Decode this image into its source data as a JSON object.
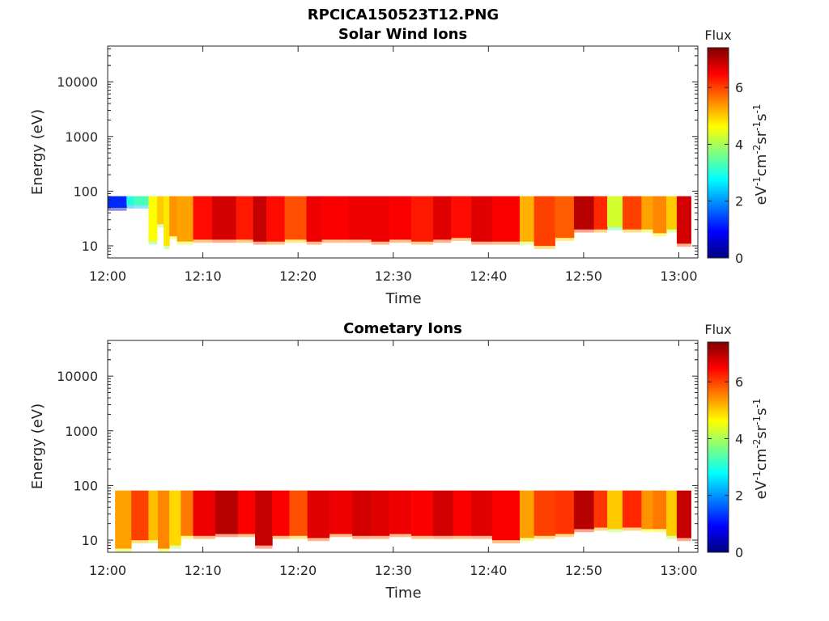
{
  "figure_title": "RPCICA150523T12.PNG",
  "colors": {
    "axis": "#262626"
  },
  "colorbar": {
    "title": "Flux",
    "unit_parts": [
      "eV",
      "-1",
      "cm",
      "-2",
      "sr",
      "-1",
      "s",
      "-1"
    ],
    "range": [
      0,
      7.4
    ],
    "ticks": [
      0,
      2,
      4,
      6
    ],
    "tick_labels": [
      "0",
      "2",
      "4",
      "6"
    ],
    "colormap": "jet"
  },
  "chart_data": [
    {
      "type": "heatmap",
      "title": "Solar Wind Ions",
      "xlabel": "Time",
      "ylabel": "Energy (eV)",
      "x_ticks": [
        "12:00",
        "12:10",
        "12:20",
        "12:30",
        "12:40",
        "12:50",
        "13:00"
      ],
      "x_range_min": [
        0,
        62
      ],
      "y_scale": "log",
      "y_range": [
        6,
        45000
      ],
      "y_ticks": [
        10,
        100,
        1000,
        10000
      ],
      "y_tick_labels": [
        "10",
        "100",
        "1000",
        "10000"
      ],
      "energy_max": 80,
      "segments": [
        [
          0.0,
          2.0,
          50,
          1.2
        ],
        [
          2.0,
          2.8,
          55,
          3.0
        ],
        [
          2.8,
          4.3,
          55,
          3.3
        ],
        [
          4.3,
          5.2,
          12,
          4.6
        ],
        [
          5.2,
          5.9,
          25,
          5.0
        ],
        [
          5.9,
          6.5,
          10,
          4.8
        ],
        [
          6.5,
          7.3,
          15,
          5.4
        ],
        [
          7.3,
          9.0,
          12,
          5.3
        ],
        [
          9.0,
          11.0,
          13,
          6.4
        ],
        [
          11.0,
          13.5,
          13,
          6.8
        ],
        [
          13.5,
          15.3,
          13,
          6.3
        ],
        [
          15.3,
          16.7,
          12,
          6.9
        ],
        [
          16.7,
          18.6,
          12,
          6.4
        ],
        [
          18.6,
          20.9,
          13,
          5.9
        ],
        [
          20.9,
          22.5,
          12,
          6.6
        ],
        [
          22.5,
          25.3,
          13,
          6.5
        ],
        [
          25.3,
          27.7,
          13,
          6.6
        ],
        [
          27.7,
          29.6,
          12,
          6.6
        ],
        [
          29.6,
          31.9,
          13,
          6.5
        ],
        [
          31.9,
          34.2,
          12,
          6.3
        ],
        [
          34.2,
          36.1,
          13,
          6.7
        ],
        [
          36.1,
          38.2,
          14,
          6.4
        ],
        [
          38.2,
          40.4,
          12,
          6.7
        ],
        [
          40.4,
          43.3,
          12,
          6.5
        ],
        [
          43.3,
          44.8,
          12,
          5.2
        ],
        [
          44.8,
          47.0,
          10,
          6.0
        ],
        [
          47.0,
          49.0,
          14,
          5.8
        ],
        [
          49.0,
          51.1,
          20,
          7.0
        ],
        [
          51.1,
          52.5,
          20,
          6.2
        ],
        [
          52.5,
          54.1,
          22,
          4.3
        ],
        [
          54.1,
          56.1,
          20,
          6.0
        ],
        [
          56.1,
          57.3,
          20,
          5.3
        ],
        [
          57.3,
          58.7,
          17,
          5.5
        ],
        [
          58.7,
          59.8,
          20,
          5.0
        ],
        [
          59.8,
          61.3,
          11,
          6.8
        ]
      ]
    },
    {
      "type": "heatmap",
      "title": "Cometary Ions",
      "xlabel": "Time",
      "ylabel": "Energy (eV)",
      "x_ticks": [
        "12:00",
        "12:10",
        "12:20",
        "12:30",
        "12:40",
        "12:50",
        "13:00"
      ],
      "x_range_min": [
        0,
        62
      ],
      "y_scale": "log",
      "y_range": [
        6,
        45000
      ],
      "y_ticks": [
        10,
        100,
        1000,
        10000
      ],
      "y_tick_labels": [
        "10",
        "100",
        "1000",
        "10000"
      ],
      "energy_max": 80,
      "segments": [
        [
          0.8,
          2.5,
          7,
          5.3
        ],
        [
          2.5,
          4.3,
          10,
          6.0
        ],
        [
          4.3,
          5.3,
          10,
          5.1
        ],
        [
          5.3,
          6.5,
          7,
          5.5
        ],
        [
          6.5,
          7.7,
          8,
          4.9
        ],
        [
          7.7,
          9.0,
          12,
          5.6
        ],
        [
          9.0,
          11.3,
          12,
          6.6
        ],
        [
          11.3,
          13.7,
          13,
          7.0
        ],
        [
          13.7,
          15.5,
          13,
          6.5
        ],
        [
          15.5,
          17.3,
          8,
          6.9
        ],
        [
          17.3,
          19.1,
          12,
          6.5
        ],
        [
          19.1,
          21.0,
          12,
          5.9
        ],
        [
          21.0,
          23.3,
          11,
          6.7
        ],
        [
          23.3,
          25.7,
          13,
          6.6
        ],
        [
          25.7,
          27.7,
          12,
          6.8
        ],
        [
          27.7,
          29.6,
          12,
          6.7
        ],
        [
          29.6,
          31.9,
          13,
          6.6
        ],
        [
          31.9,
          34.2,
          12,
          6.5
        ],
        [
          34.2,
          36.3,
          12,
          6.8
        ],
        [
          36.3,
          38.2,
          12,
          6.5
        ],
        [
          38.2,
          40.4,
          12,
          6.7
        ],
        [
          40.4,
          43.3,
          10,
          6.5
        ],
        [
          43.3,
          44.8,
          11,
          5.3
        ],
        [
          44.8,
          47.0,
          12,
          6.0
        ],
        [
          47.0,
          49.0,
          13,
          6.1
        ],
        [
          49.0,
          51.1,
          16,
          7.0
        ],
        [
          51.1,
          52.5,
          17,
          6.1
        ],
        [
          52.5,
          54.1,
          16,
          5.0
        ],
        [
          54.1,
          56.1,
          17,
          6.2
        ],
        [
          56.1,
          57.3,
          16,
          5.4
        ],
        [
          57.3,
          58.7,
          16,
          5.6
        ],
        [
          58.7,
          59.8,
          12,
          5.0
        ],
        [
          59.8,
          61.3,
          11,
          6.9
        ]
      ]
    }
  ]
}
